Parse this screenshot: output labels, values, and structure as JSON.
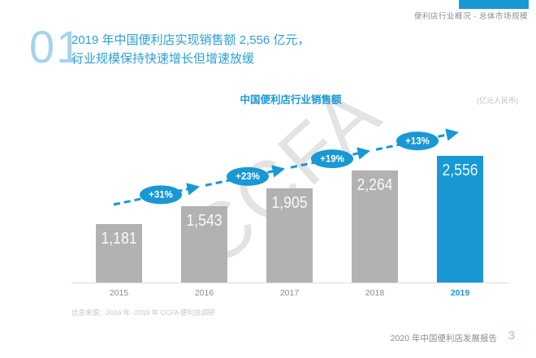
{
  "slide": {
    "breadcrumb": "便利店行业概况 - 总体市场规模",
    "section_number": "01",
    "title_line1": "2019 年中国便利店实现销售额 2,556 亿元，",
    "title_line2": "行业规模保持快速增长但增速放缓",
    "watermark": "CCFA",
    "source_note": "信息来源：2016 年 -2019 年 CCFA 便利店调研",
    "footer": {
      "report_title": "2020 年中国便利店发展报告",
      "page_number": "3"
    }
  },
  "chart_data": {
    "type": "bar",
    "title": "中国便利店行业销售额",
    "unit_label": "(亿元人民币)",
    "xlabel": "",
    "ylabel": "",
    "categories": [
      "2015",
      "2016",
      "2017",
      "2018",
      "2019"
    ],
    "values": [
      1181,
      1543,
      1905,
      2264,
      2556
    ],
    "value_labels": [
      "1,181",
      "1,543",
      "1,905",
      "2,264",
      "2,556"
    ],
    "growth_labels": [
      "+31%",
      "+23%",
      "+19%",
      "+13%"
    ],
    "highlight_index": 4,
    "ylim": [
      0,
      2556
    ],
    "grid": false,
    "legend": false,
    "colors": {
      "bar": "#b2b2b2",
      "highlight_bar": "#1898d4",
      "arrow": "#1898d4",
      "badge_text": "#ffffff",
      "value_label": "#ffffff",
      "title": "#1898d4"
    }
  }
}
